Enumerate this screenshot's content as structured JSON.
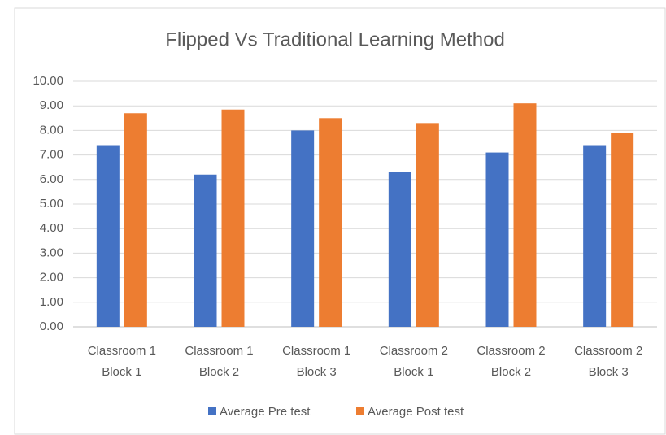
{
  "chart_data": {
    "type": "bar",
    "title": "Flipped Vs Traditional Learning Method",
    "categories": [
      [
        "Classroom 1",
        "Block 1"
      ],
      [
        "Classroom 1",
        "Block 2"
      ],
      [
        "Classroom 1",
        "Block 3"
      ],
      [
        "Classroom 2",
        "Block 1"
      ],
      [
        "Classroom 2",
        "Block 2"
      ],
      [
        "Classroom 2",
        "Block 3"
      ]
    ],
    "series": [
      {
        "name": "Average Pre test",
        "color": "#4472c4",
        "values": [
          7.4,
          6.2,
          8.0,
          6.3,
          7.1,
          7.4
        ]
      },
      {
        "name": "Average Post test",
        "color": "#ed7d31",
        "values": [
          8.7,
          8.85,
          8.5,
          8.3,
          9.1,
          7.9
        ]
      }
    ],
    "ylim": [
      0,
      10
    ],
    "yticks": [
      {
        "value": 0,
        "label": "0.00"
      },
      {
        "value": 1,
        "label": "1.00"
      },
      {
        "value": 2,
        "label": "2.00"
      },
      {
        "value": 3,
        "label": "3.00"
      },
      {
        "value": 4,
        "label": "4.00"
      },
      {
        "value": 5,
        "label": "5.00"
      },
      {
        "value": 6,
        "label": "6.00"
      },
      {
        "value": 7,
        "label": "7.00"
      },
      {
        "value": 8,
        "label": "8.00"
      },
      {
        "value": 9,
        "label": "9.00"
      },
      {
        "value": 10,
        "label": "10.00"
      }
    ],
    "grid": true,
    "legend": "bottom"
  }
}
